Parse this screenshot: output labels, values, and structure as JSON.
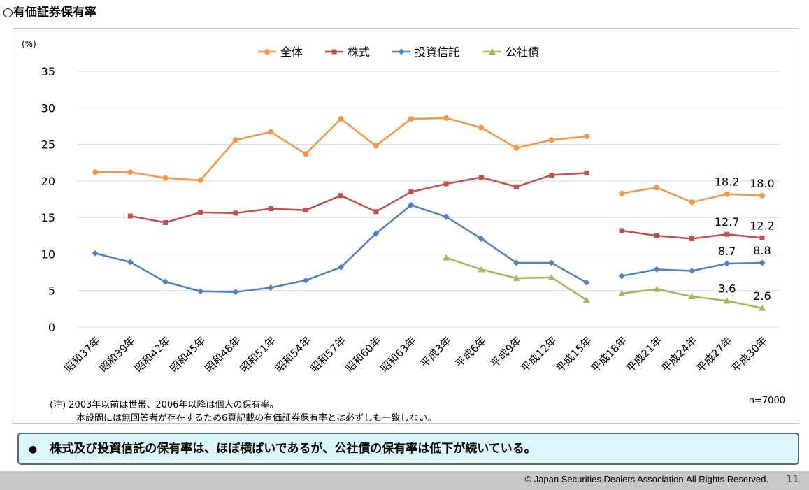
{
  "title": "○有価証券保有率",
  "chart_data": {
    "type": "line",
    "ylabel": "(%)",
    "ylim": [
      0,
      35
    ],
    "yticks": [
      0,
      5,
      10,
      15,
      20,
      25,
      30,
      35
    ],
    "categories": [
      "昭和37年",
      "昭和39年",
      "昭和42年",
      "昭和45年",
      "昭和48年",
      "昭和51年",
      "昭和54年",
      "昭和57年",
      "昭和60年",
      "昭和63年",
      "平成3年",
      "平成6年",
      "平成9年",
      "平成12年",
      "平成15年",
      "平成18年",
      "平成21年",
      "平成24年",
      "平成27年",
      "平成30年"
    ],
    "legend_position": "top-center",
    "grid": "horizontal",
    "break_after_index": 14,
    "series": [
      {
        "name": "全体",
        "color": "#f79646",
        "marker": "circle",
        "values": [
          21.2,
          21.2,
          20.4,
          20.1,
          25.6,
          26.7,
          23.7,
          28.5,
          24.8,
          28.5,
          28.6,
          27.3,
          24.5,
          25.6,
          26.1,
          18.3,
          19.1,
          17.1,
          18.2,
          18.0
        ]
      },
      {
        "name": "株式",
        "color": "#c0504d",
        "marker": "square",
        "values": [
          null,
          15.2,
          14.3,
          15.7,
          15.6,
          16.2,
          16.0,
          18.0,
          15.8,
          18.5,
          19.6,
          20.5,
          19.2,
          20.8,
          21.1,
          13.2,
          12.5,
          12.1,
          12.7,
          12.2
        ]
      },
      {
        "name": "投資信託",
        "color": "#4f81bd",
        "marker": "diamond",
        "values": [
          10.1,
          8.9,
          6.2,
          4.9,
          4.8,
          5.4,
          6.4,
          8.2,
          12.8,
          16.7,
          15.1,
          12.1,
          8.8,
          8.8,
          6.1,
          7.0,
          7.9,
          7.7,
          8.7,
          8.8
        ]
      },
      {
        "name": "公社債",
        "color": "#9bbb59",
        "marker": "triangle",
        "values": [
          null,
          null,
          null,
          null,
          null,
          null,
          null,
          null,
          null,
          null,
          9.5,
          7.9,
          6.7,
          6.8,
          3.7,
          4.6,
          5.2,
          4.2,
          3.6,
          2.6
        ]
      }
    ],
    "data_labels": [
      {
        "series": 0,
        "index": 18,
        "text": "18.2"
      },
      {
        "series": 0,
        "index": 19,
        "text": "18.0"
      },
      {
        "series": 1,
        "index": 18,
        "text": "12.7"
      },
      {
        "series": 1,
        "index": 19,
        "text": "12.2"
      },
      {
        "series": 2,
        "index": 18,
        "text": "8.7"
      },
      {
        "series": 2,
        "index": 19,
        "text": "8.8"
      },
      {
        "series": 3,
        "index": 18,
        "text": "3.6"
      },
      {
        "series": 3,
        "index": 19,
        "text": "2.6"
      }
    ]
  },
  "notes": {
    "line1": "(注) 2003年以前は世帯、2006年以降は個人の保有率。",
    "line2": "本設問には無回答者が存在するため6頁記載の有価証券保有率とは必ずしも一致しない。",
    "n": "n=7000"
  },
  "summary": {
    "bullet": "●",
    "text": "株式及び投資信託の保有率は、ほぼ横ばいであるが、公社債の保有率は低下が続いている。"
  },
  "footer": {
    "copyright": "© Japan Securities Dealers Association.All Rights Reserved.",
    "page_number": "11"
  }
}
